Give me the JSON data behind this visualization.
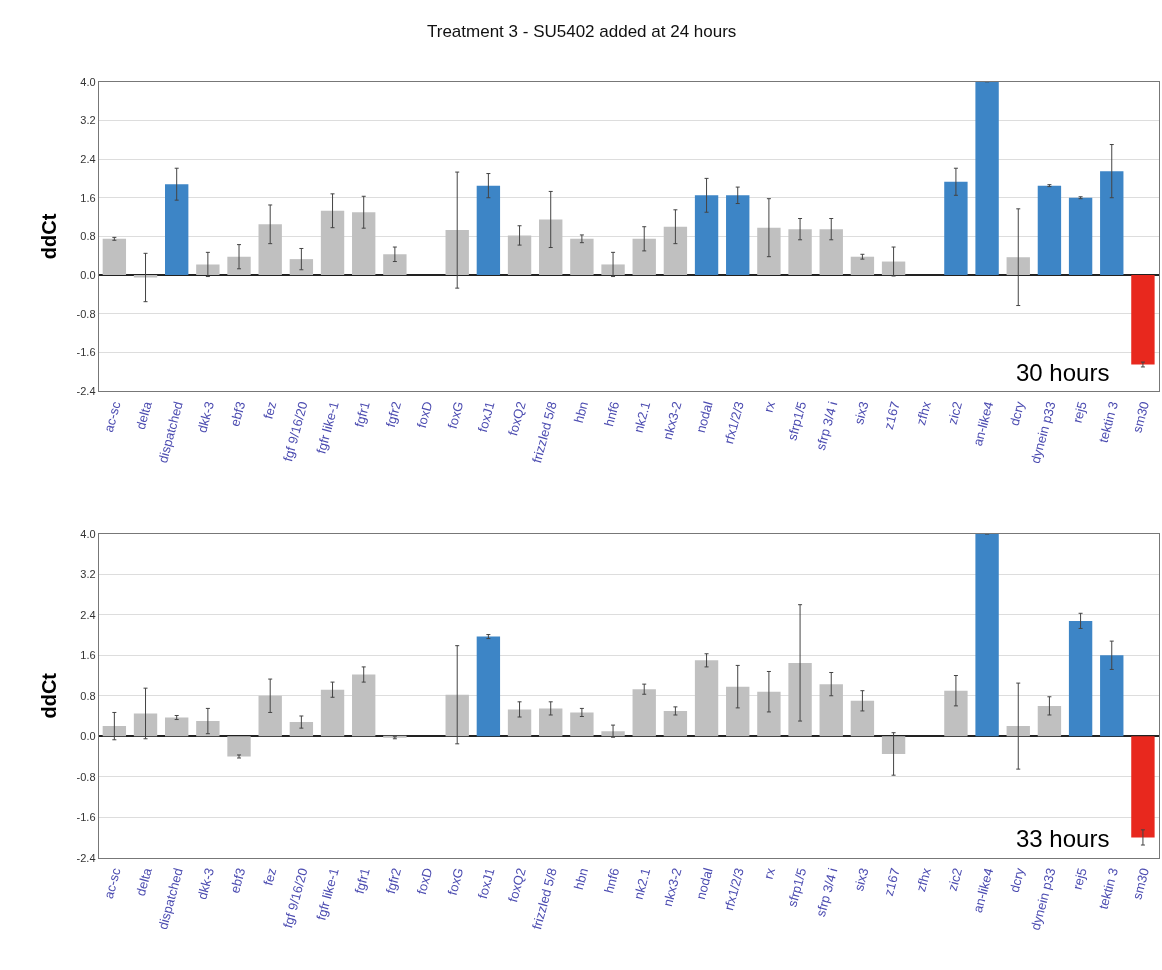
{
  "chart_data": [
    {
      "type": "bar",
      "title": "Treatment 3 - SU5402 added at 24 hours",
      "ylabel": "ddCt",
      "annotations": [
        "30 hours"
      ],
      "categories": [
        "ac-sc",
        "delta",
        "dispatched",
        "dkk-3",
        "ebf3",
        "fez",
        "fgf 9/16/20",
        "fgfr like-1",
        "fgfr1",
        "fgfr2",
        "foxD",
        "foxG",
        "foxJ1",
        "foxQ2",
        "frizzled 5/8",
        "hbn",
        "hnf6",
        "nk2.1",
        "nkx3-2",
        "nodal",
        "rfx1/2/3",
        "rx",
        "sfrp1/5",
        "sfrp 3/4 i",
        "six3",
        "z167",
        "zfhx",
        "zic2",
        "an-like4",
        "dcry",
        "dynein p33",
        "rej5",
        "tektin 3",
        "sm30"
      ],
      "values": [
        0.75,
        -0.05,
        1.88,
        0.22,
        0.38,
        1.05,
        0.33,
        1.33,
        1.3,
        0.43,
        null,
        0.93,
        1.85,
        0.82,
        1.15,
        0.75,
        0.22,
        0.75,
        1.0,
        1.65,
        1.65,
        0.98,
        0.95,
        0.95,
        0.38,
        0.28,
        null,
        1.93,
        4.0,
        0.37,
        1.85,
        1.6,
        2.15,
        -1.85
      ],
      "errors": [
        0.03,
        0.5,
        0.33,
        0.25,
        0.25,
        0.4,
        0.22,
        0.35,
        0.33,
        0.15,
        null,
        1.2,
        0.25,
        0.2,
        0.58,
        0.08,
        0.25,
        0.25,
        0.35,
        0.35,
        0.17,
        0.6,
        0.22,
        0.22,
        0.05,
        0.3,
        null,
        0.28,
        null,
        1.0,
        0.02,
        0.02,
        0.55,
        0.05
      ],
      "colors": [
        "#c0c0c0",
        "#c0c0c0",
        "#3d85c6",
        "#c0c0c0",
        "#c0c0c0",
        "#c0c0c0",
        "#c0c0c0",
        "#c0c0c0",
        "#c0c0c0",
        "#c0c0c0",
        "#c0c0c0",
        "#c0c0c0",
        "#3d85c6",
        "#c0c0c0",
        "#c0c0c0",
        "#c0c0c0",
        "#c0c0c0",
        "#c0c0c0",
        "#c0c0c0",
        "#3d85c6",
        "#3d85c6",
        "#c0c0c0",
        "#c0c0c0",
        "#c0c0c0",
        "#c0c0c0",
        "#c0c0c0",
        "#c0c0c0",
        "#3d85c6",
        "#3d85c6",
        "#c0c0c0",
        "#3d85c6",
        "#3d85c6",
        "#3d85c6",
        "#e8281e"
      ],
      "ylim": [
        -2.4,
        4.0
      ],
      "yticks": [
        {
          "value": -2.4,
          "label": "-2.4"
        },
        {
          "value": -1.6,
          "label": "-1.6"
        },
        {
          "value": -0.8,
          "label": "-0.8"
        },
        {
          "value": 0,
          "label": "0.0"
        },
        {
          "value": 0.8,
          "label": "0.8"
        },
        {
          "value": 1.6,
          "label": "1.6"
        },
        {
          "value": 2.4,
          "label": "2.4"
        },
        {
          "value": 3.2,
          "label": "3.2"
        },
        {
          "value": 4,
          "label": "4.0"
        }
      ],
      "grid": "y"
    },
    {
      "type": "bar",
      "ylabel": "ddCt",
      "annotations": [
        "33 hours"
      ],
      "categories": [
        "ac-sc",
        "delta",
        "dispatched",
        "dkk-3",
        "ebf3",
        "fez",
        "fgf 9/16/20",
        "fgfr like-1",
        "fgfr1",
        "fgfr2",
        "foxD",
        "foxG",
        "foxJ1",
        "foxQ2",
        "frizzled 5/8",
        "hbn",
        "hnf6",
        "nk2.1",
        "nkx3-2",
        "nodal",
        "rfx1/2/3",
        "rx",
        "sfrp1/5",
        "sfrp 3/4 i",
        "six3",
        "z167",
        "zfhx",
        "zic2",
        "an-like4",
        "dcry",
        "dynein p33",
        "rej5",
        "tektin 3",
        "sm30"
      ],
      "values": [
        0.2,
        0.45,
        0.37,
        0.3,
        -0.4,
        0.8,
        0.28,
        0.92,
        1.22,
        -0.03,
        null,
        0.82,
        1.97,
        0.53,
        0.55,
        0.47,
        0.1,
        0.93,
        0.5,
        1.5,
        0.98,
        0.88,
        1.45,
        1.03,
        0.7,
        -0.35,
        null,
        0.9,
        4.0,
        0.2,
        0.6,
        2.28,
        1.6,
        -2.0
      ],
      "errors": [
        0.27,
        0.5,
        0.04,
        0.25,
        0.03,
        0.33,
        0.12,
        0.15,
        0.15,
        0.02,
        null,
        0.97,
        0.04,
        0.15,
        0.13,
        0.08,
        0.12,
        0.1,
        0.08,
        0.13,
        0.42,
        0.4,
        1.15,
        0.23,
        0.2,
        0.42,
        null,
        0.3,
        null,
        0.85,
        0.18,
        0.15,
        0.28,
        0.15
      ],
      "colors": [
        "#c0c0c0",
        "#c0c0c0",
        "#c0c0c0",
        "#c0c0c0",
        "#c0c0c0",
        "#c0c0c0",
        "#c0c0c0",
        "#c0c0c0",
        "#c0c0c0",
        "#c0c0c0",
        "#c0c0c0",
        "#c0c0c0",
        "#3d85c6",
        "#c0c0c0",
        "#c0c0c0",
        "#c0c0c0",
        "#c0c0c0",
        "#c0c0c0",
        "#c0c0c0",
        "#c0c0c0",
        "#c0c0c0",
        "#c0c0c0",
        "#c0c0c0",
        "#c0c0c0",
        "#c0c0c0",
        "#c0c0c0",
        "#c0c0c0",
        "#c0c0c0",
        "#3d85c6",
        "#c0c0c0",
        "#c0c0c0",
        "#3d85c6",
        "#3d85c6",
        "#e8281e"
      ],
      "ylim": [
        -2.4,
        4.0
      ],
      "yticks": [
        {
          "value": -2.4,
          "label": "-2.4"
        },
        {
          "value": -1.6,
          "label": "-1.6"
        },
        {
          "value": -0.8,
          "label": "-0.8"
        },
        {
          "value": 0,
          "label": "0.0"
        },
        {
          "value": 0.8,
          "label": "0.8"
        },
        {
          "value": 1.6,
          "label": "1.6"
        },
        {
          "value": 2.4,
          "label": "2.4"
        },
        {
          "value": 3.2,
          "label": "3.2"
        },
        {
          "value": 4,
          "label": "4.0"
        }
      ],
      "grid": "y"
    }
  ]
}
